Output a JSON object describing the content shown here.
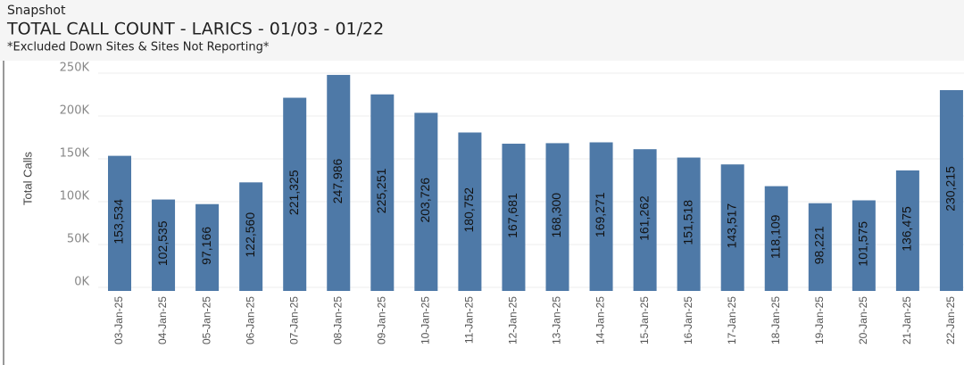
{
  "chart_data": {
    "type": "bar",
    "header": "Snapshot",
    "title": "TOTAL CALL COUNT - LARICS - 01/03 - 01/22",
    "subtitle": "*Excluded Down Sites & Sites Not Reporting*",
    "y_label": "Total Calls",
    "categories": [
      "03-Jan-25",
      "04-Jan-25",
      "05-Jan-25",
      "06-Jan-25",
      "07-Jan-25",
      "08-Jan-25",
      "09-Jan-25",
      "10-Jan-25",
      "11-Jan-25",
      "12-Jan-25",
      "13-Jan-25",
      "14-Jan-25",
      "15-Jan-25",
      "16-Jan-25",
      "17-Jan-25",
      "18-Jan-25",
      "19-Jan-25",
      "20-Jan-25",
      "21-Jan-25",
      "22-Jan-25"
    ],
    "values": [
      153534,
      102535,
      97166,
      122560,
      221325,
      247986,
      225251,
      203726,
      180752,
      167681,
      168300,
      169271,
      161262,
      151518,
      143517,
      118109,
      98221,
      101575,
      136475,
      230215
    ],
    "value_labels": [
      "153,534",
      "102,535",
      "97,166",
      "122,560",
      "221,325",
      "247,986",
      "225,251",
      "203,726",
      "180,752",
      "167,681",
      "168,300",
      "169,271",
      "161,262",
      "151,518",
      "143,517",
      "118,109",
      "98,221",
      "101,575",
      "136,475",
      "230,215"
    ],
    "color": "#4e79a7",
    "ylim": [
      0,
      250000
    ],
    "yticks": [
      {
        "value": 0,
        "label": "0K"
      },
      {
        "value": 50000,
        "label": "50K"
      },
      {
        "value": 100000,
        "label": "100K"
      },
      {
        "value": 150000,
        "label": "150K"
      },
      {
        "value": 200000,
        "label": "200K"
      },
      {
        "value": 250000,
        "label": "250K"
      }
    ],
    "grid": true
  }
}
